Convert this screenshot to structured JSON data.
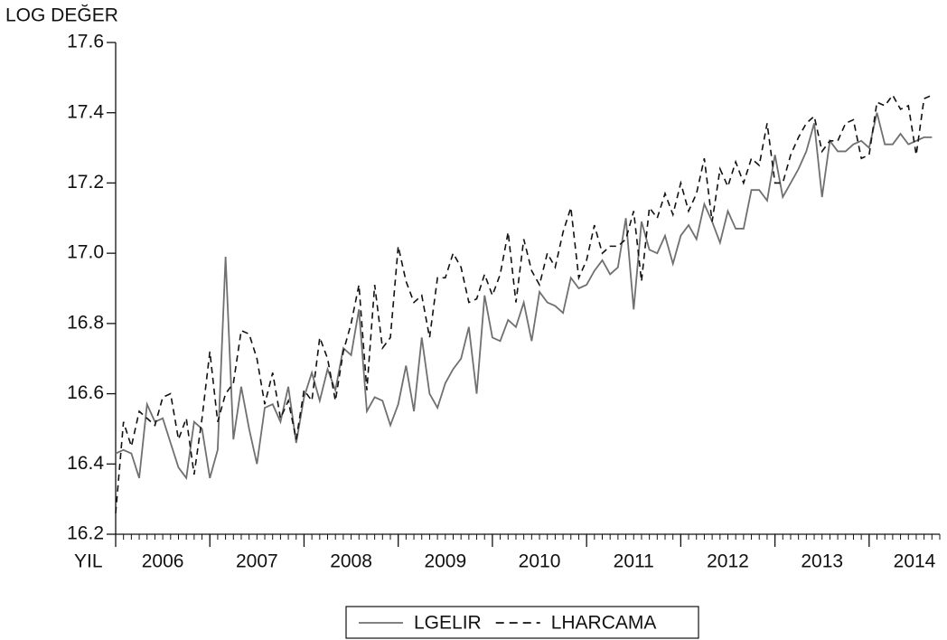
{
  "chart_data": {
    "type": "line",
    "y_label": "LOG DEĞER",
    "x_label": "YIL",
    "x": [
      2006,
      2006.083,
      2006.167,
      2006.25,
      2006.333,
      2006.417,
      2006.5,
      2006.583,
      2006.667,
      2006.75,
      2006.833,
      2006.917,
      2007,
      2007.083,
      2007.167,
      2007.25,
      2007.333,
      2007.417,
      2007.5,
      2007.583,
      2007.667,
      2007.75,
      2007.833,
      2007.917,
      2008,
      2008.083,
      2008.167,
      2008.25,
      2008.333,
      2008.417,
      2008.5,
      2008.583,
      2008.667,
      2008.75,
      2008.833,
      2008.917,
      2009,
      2009.083,
      2009.167,
      2009.25,
      2009.333,
      2009.417,
      2009.5,
      2009.583,
      2009.667,
      2009.75,
      2009.833,
      2009.917,
      2010,
      2010.083,
      2010.167,
      2010.25,
      2010.333,
      2010.417,
      2010.5,
      2010.583,
      2010.667,
      2010.75,
      2010.833,
      2010.917,
      2011,
      2011.083,
      2011.167,
      2011.25,
      2011.333,
      2011.417,
      2011.5,
      2011.583,
      2011.667,
      2011.75,
      2011.833,
      2011.917,
      2012,
      2012.083,
      2012.167,
      2012.25,
      2012.333,
      2012.417,
      2012.5,
      2012.583,
      2012.667,
      2012.75,
      2012.833,
      2012.917,
      2013,
      2013.083,
      2013.167,
      2013.25,
      2013.333,
      2013.417,
      2013.5,
      2013.583,
      2013.667,
      2013.75,
      2013.833,
      2013.917,
      2014,
      2014.083,
      2014.167,
      2014.25,
      2014.333,
      2014.417,
      2014.5,
      2014.583,
      2014.667
    ],
    "series": [
      {
        "name": "LGELIR",
        "color": "#707070",
        "dash": "solid",
        "values": [
          16.43,
          16.44,
          16.43,
          16.36,
          16.57,
          16.52,
          16.53,
          16.46,
          16.39,
          16.36,
          16.52,
          16.5,
          16.36,
          16.44,
          16.99,
          16.47,
          16.62,
          16.5,
          16.4,
          16.56,
          16.57,
          16.52,
          16.62,
          16.46,
          16.59,
          16.66,
          16.58,
          16.67,
          16.61,
          16.73,
          16.71,
          16.84,
          16.55,
          16.59,
          16.58,
          16.51,
          16.57,
          16.68,
          16.55,
          16.76,
          16.6,
          16.56,
          16.63,
          16.67,
          16.7,
          16.79,
          16.6,
          16.88,
          16.76,
          16.75,
          16.81,
          16.79,
          16.86,
          16.75,
          16.89,
          16.86,
          16.85,
          16.83,
          16.93,
          16.9,
          16.91,
          16.95,
          16.98,
          16.94,
          16.96,
          17.1,
          16.84,
          17.09,
          17.01,
          17.0,
          17.05,
          16.97,
          17.05,
          17.08,
          17.04,
          17.14,
          17.09,
          17.03,
          17.12,
          17.07,
          17.07,
          17.18,
          17.18,
          17.15,
          17.28,
          17.16,
          17.2,
          17.24,
          17.29,
          17.37,
          17.16,
          17.32,
          17.29,
          17.29,
          17.31,
          17.32,
          17.3,
          17.4,
          17.31,
          17.31,
          17.34,
          17.31,
          17.32,
          17.33,
          17.33
        ]
      },
      {
        "name": "LHARCAMA",
        "color": "#111111",
        "dash": "dashed",
        "values": [
          16.26,
          16.52,
          16.45,
          16.55,
          16.53,
          16.51,
          16.59,
          16.6,
          16.47,
          16.53,
          16.37,
          16.53,
          16.72,
          16.52,
          16.6,
          16.63,
          16.78,
          16.77,
          16.7,
          16.57,
          16.66,
          16.53,
          16.58,
          16.47,
          16.61,
          16.58,
          16.76,
          16.7,
          16.58,
          16.72,
          16.8,
          16.91,
          16.61,
          16.91,
          16.73,
          16.76,
          17.02,
          16.92,
          16.86,
          16.88,
          16.76,
          16.93,
          16.93,
          17.0,
          16.96,
          16.86,
          16.87,
          16.94,
          16.88,
          16.94,
          17.06,
          16.86,
          17.04,
          16.95,
          16.91,
          17.0,
          16.96,
          17.06,
          17.13,
          16.93,
          16.98,
          17.08,
          17.0,
          17.02,
          17.02,
          17.04,
          17.12,
          16.92,
          17.13,
          17.1,
          17.17,
          17.11,
          17.2,
          17.12,
          17.17,
          17.27,
          17.09,
          17.24,
          17.19,
          17.26,
          17.2,
          17.27,
          17.25,
          17.37,
          17.2,
          17.2,
          17.28,
          17.33,
          17.37,
          17.39,
          17.29,
          17.32,
          17.32,
          17.37,
          17.38,
          17.27,
          17.28,
          17.43,
          17.42,
          17.45,
          17.41,
          17.42,
          17.28,
          17.44,
          17.45
        ]
      }
    ],
    "xlim": [
      2006,
      2014.75
    ],
    "xticks": [
      2006,
      2007,
      2008,
      2009,
      2010,
      2011,
      2012,
      2013,
      2014
    ],
    "ylim": [
      16.2,
      17.6
    ],
    "yticks": [
      16.2,
      16.4,
      16.6,
      16.8,
      {
        "value": 17,
        "label": "17.0"
      },
      17.2,
      17.4,
      17.6
    ],
    "grid": false,
    "legend": "bottom"
  }
}
